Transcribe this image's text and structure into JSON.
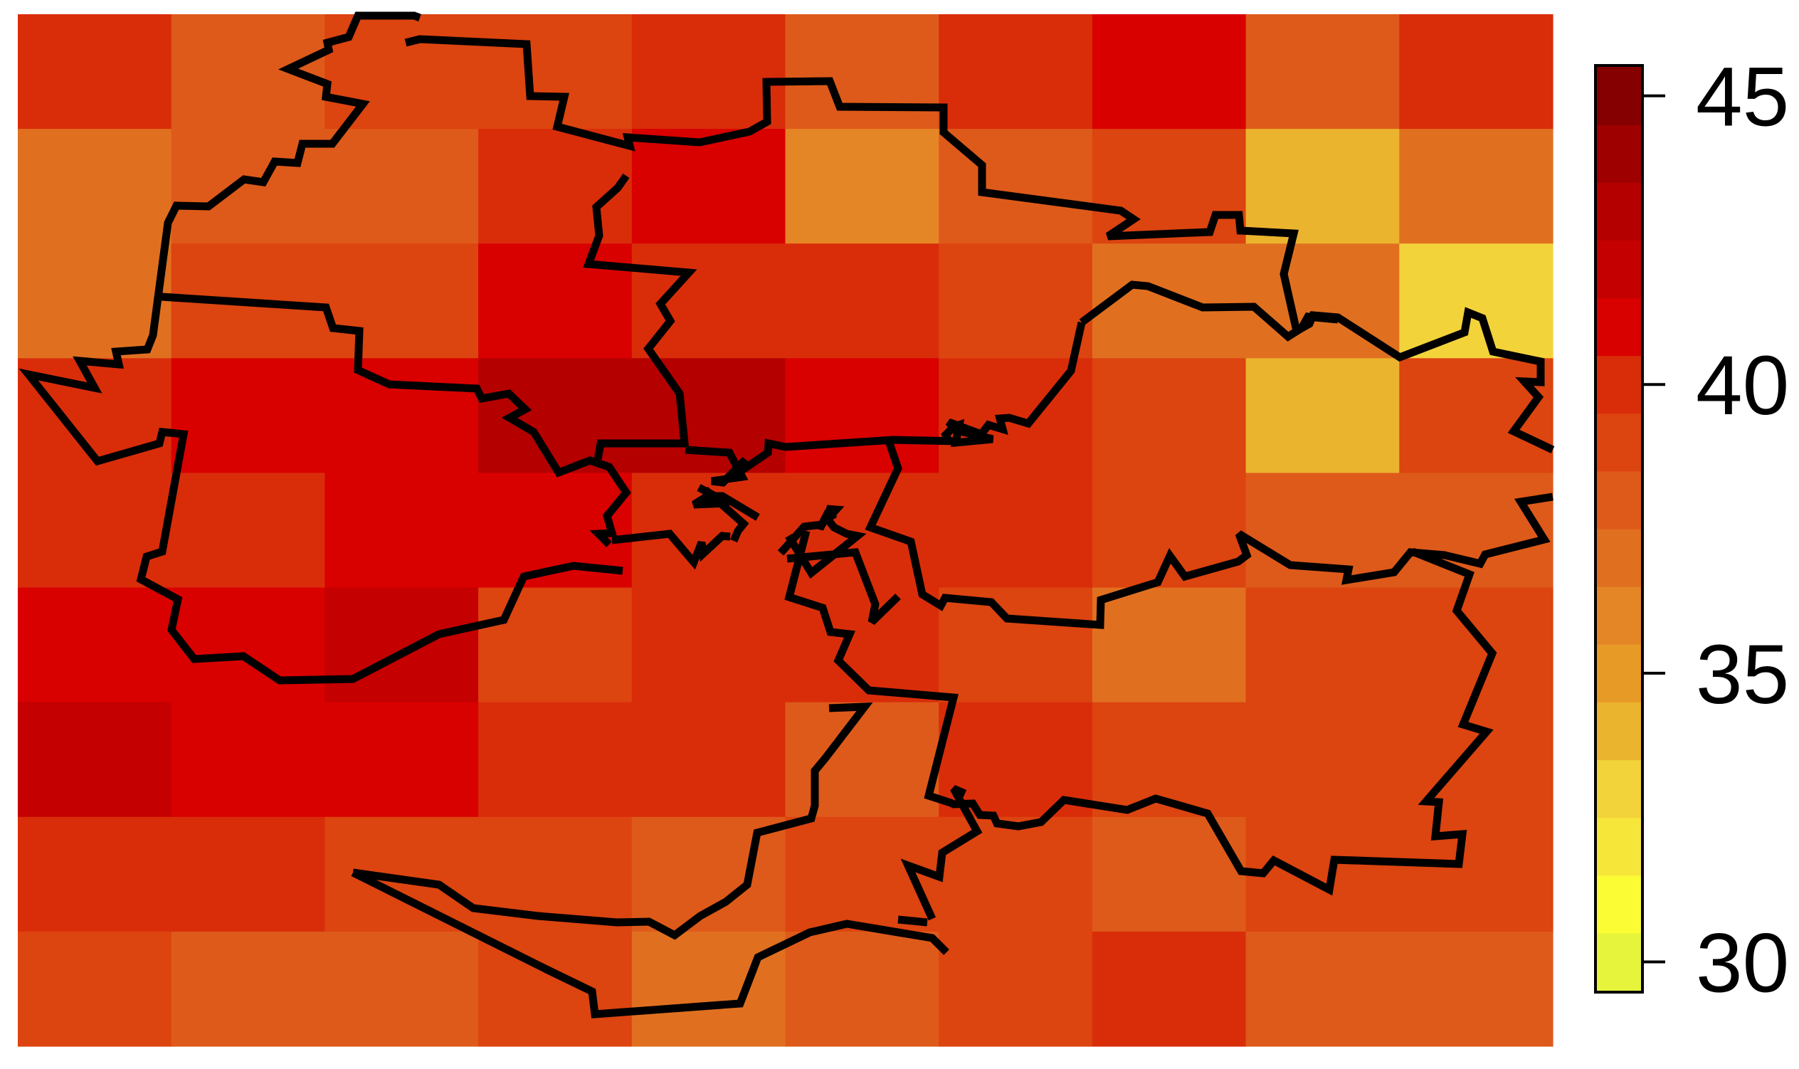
{
  "chart_data": {
    "type": "heatmap",
    "title": "",
    "colorbar": {
      "range": [
        29.5,
        45.5
      ],
      "ticks": [
        {
          "value": 45,
          "label": "45"
        },
        {
          "value": 40,
          "label": "40"
        },
        {
          "value": 35,
          "label": "35"
        },
        {
          "value": 30,
          "label": "30"
        }
      ],
      "step": 1,
      "colors": [
        "#e6f53c",
        "#fcfc34",
        "#f7e63a",
        "#f3d33a",
        "#ebb42e",
        "#e89a26",
        "#e58626",
        "#e07020",
        "#de5a1a",
        "#dc4410",
        "#d92d0a",
        "#d90000",
        "#c40000",
        "#b50000",
        "#9e0000",
        "#850000"
      ]
    },
    "grid": {
      "rows": 9,
      "cols": 10,
      "values": [
        [
          39.6,
          38.2,
          39.0,
          39.2,
          40.4,
          38.0,
          40.4,
          40.5,
          37.8,
          40.4
        ],
        [
          37.2,
          37.8,
          37.6,
          40.2,
          40.5,
          35.5,
          37.6,
          39.4,
          33.6,
          37.3
        ],
        [
          37.3,
          39.3,
          39.4,
          40.6,
          40.2,
          40.3,
          39.3,
          37.3,
          36.8,
          32.6
        ],
        [
          39.8,
          41.4,
          41.3,
          43.2,
          43.0,
          41.4,
          39.8,
          38.8,
          33.7,
          38.6
        ],
        [
          39.7,
          40.3,
          41.4,
          40.9,
          40.3,
          40.3,
          39.5,
          38.6,
          37.6,
          37.9
        ],
        [
          41.4,
          41.2,
          41.5,
          39.4,
          39.5,
          39.5,
          39.4,
          37.2,
          38.8,
          38.7
        ],
        [
          41.7,
          40.5,
          40.5,
          39.6,
          39.7,
          38.4,
          39.6,
          39.4,
          39.4,
          39.3
        ],
        [
          40.0,
          40.2,
          38.8,
          38.7,
          37.6,
          38.8,
          38.7,
          38.3,
          38.7,
          38.9
        ],
        [
          38.8,
          38.2,
          38.2,
          38.5,
          36.6,
          37.6,
          38.6,
          39.6,
          38.0,
          38.2
        ]
      ]
    },
    "borders": [
      [
        [
          590,
          25
        ],
        [
          582,
          22
        ],
        [
          503,
          22
        ],
        [
          490,
          52
        ],
        [
          460,
          60
        ],
        [
          462,
          70
        ],
        [
          405,
          97
        ],
        [
          460,
          118
        ],
        [
          458,
          136
        ],
        [
          510,
          146
        ],
        [
          467,
          202
        ],
        [
          425,
          202
        ],
        [
          418,
          229
        ],
        [
          386,
          227
        ],
        [
          370,
          256
        ],
        [
          343,
          252
        ],
        [
          293,
          290
        ],
        [
          248,
          289
        ],
        [
          236,
          313
        ],
        [
          215,
          471
        ],
        [
          207,
          491
        ],
        [
          163,
          494
        ],
        [
          167,
          512
        ],
        [
          112,
          507
        ],
        [
          133,
          545
        ],
        [
          40,
          526
        ],
        [
          137,
          648
        ],
        [
          224,
          623
        ],
        [
          228,
          607
        ],
        [
          258,
          610
        ],
        [
          228,
          775
        ],
        [
          206,
          782
        ],
        [
          198,
          814
        ],
        [
          250,
          842
        ],
        [
          241,
          885
        ],
        [
          273,
          926
        ],
        [
          342,
          922
        ],
        [
          393,
          956
        ],
        [
          496,
          954
        ],
        [
          617,
          891
        ],
        [
          708,
          871
        ],
        [
          736,
          810
        ],
        [
          806,
          795
        ],
        [
          875,
          802
        ]
      ],
      [
        [
          570,
          60
        ],
        [
          590,
          55
        ],
        [
          740,
          62
        ],
        [
          745,
          135
        ],
        [
          793,
          136
        ],
        [
          783,
          178
        ],
        [
          885,
          205
        ],
        [
          882,
          193
        ],
        [
          983,
          200
        ],
        [
          1053,
          185
        ],
        [
          1078,
          171
        ],
        [
          1077,
          115
        ],
        [
          1166,
          114
        ],
        [
          1180,
          150
        ],
        [
          1326,
          151
        ],
        [
          1326,
          186
        ],
        [
          1380,
          232
        ],
        [
          1380,
          270
        ],
        [
          1575,
          296
        ],
        [
          1593,
          308
        ],
        [
          1557,
          332
        ],
        [
          1700,
          326
        ],
        [
          1708,
          302
        ],
        [
          1741,
          302
        ],
        [
          1743,
          324
        ],
        [
          1818,
          328
        ],
        [
          1804,
          385
        ],
        [
          1822,
          465
        ],
        [
          1840,
          455
        ],
        [
          1845,
          443
        ],
        [
          1880,
          446
        ],
        [
          1967,
          502
        ],
        [
          2058,
          467
        ],
        [
          2063,
          439
        ],
        [
          2083,
          447
        ],
        [
          2098,
          494
        ],
        [
          2165,
          508
        ],
        [
          2165,
          537
        ],
        [
          2142,
          536
        ],
        [
          2162,
          558
        ],
        [
          2127,
          606
        ],
        [
          2182,
          632
        ]
      ],
      [
        [
          227,
          417
        ],
        [
          458,
          432
        ],
        [
          468,
          461
        ],
        [
          505,
          465
        ],
        [
          503,
          520
        ],
        [
          547,
          540
        ],
        [
          670,
          546
        ],
        [
          677,
          560
        ],
        [
          715,
          553
        ],
        [
          738,
          575
        ],
        [
          716,
          587
        ],
        [
          750,
          607
        ],
        [
          785,
          664
        ],
        [
          829,
          647
        ],
        [
          856,
          656
        ],
        [
          880,
          692
        ],
        [
          853,
          725
        ],
        [
          860,
          749
        ],
        [
          841,
          750
        ],
        [
          856,
          765
        ]
      ],
      [
        [
          880,
          247
        ],
        [
          868,
          264
        ],
        [
          838,
          291
        ],
        [
          842,
          331
        ],
        [
          827,
          371
        ],
        [
          968,
          383
        ],
        [
          928,
          427
        ],
        [
          942,
          451
        ],
        [
          911,
          490
        ],
        [
          955,
          553
        ],
        [
          962,
          623
        ],
        [
          844,
          623
        ],
        [
          840,
          645
        ]
      ],
      [
        [
          1520,
          453
        ],
        [
          1591,
          400
        ],
        [
          1613,
          402
        ],
        [
          1690,
          432
        ],
        [
          1762,
          431
        ],
        [
          1810,
          473
        ],
        [
          1829,
          461
        ],
        [
          1838,
          445
        ],
        [
          1880,
          449
        ]
      ],
      [
        [
          1520,
          453
        ],
        [
          1505,
          521
        ],
        [
          1445,
          595
        ],
        [
          1418,
          587
        ],
        [
          1405,
          588
        ],
        [
          1409,
          603
        ],
        [
          1389,
          597
        ],
        [
          1379,
          610
        ],
        [
          1333,
          593
        ],
        [
          1339,
          600
        ],
        [
          1348,
          597
        ],
        [
          1343,
          622
        ],
        [
          1395,
          617
        ],
        [
          1337,
          603
        ],
        [
          1329,
          611
        ],
        [
          1333,
          619
        ]
      ],
      [
        [
          963,
          632
        ],
        [
          1025,
          636
        ],
        [
          1043,
          670
        ],
        [
          1000,
          676
        ],
        [
          1016,
          678
        ],
        [
          1047,
          646
        ],
        [
          1038,
          664
        ],
        [
          1079,
          636
        ],
        [
          1080,
          623
        ],
        [
          1104,
          628
        ],
        [
          1255,
          618
        ],
        [
          1347,
          620
        ]
      ],
      [
        [
          982,
          685
        ],
        [
          1024,
          707
        ],
        [
          975,
          709
        ],
        [
          994,
          697
        ],
        [
          1015,
          697
        ],
        [
          1065,
          727
        ]
      ],
      [
        [
          991,
          688
        ],
        [
          1045,
          736
        ],
        [
          1037,
          746
        ],
        [
          1031,
          760
        ]
      ],
      [
        [
          1026,
          754
        ],
        [
          1015,
          753
        ],
        [
          988,
          778
        ],
        [
          986,
          762
        ],
        [
          975,
          790
        ],
        [
          941,
          750
        ],
        [
          860,
          759
        ]
      ],
      [
        [
          1106,
          785
        ],
        [
          1202,
          776
        ],
        [
          1230,
          849
        ],
        [
          1225,
          874
        ],
        [
          1262,
          838
        ]
      ],
      [
        [
          1097,
          777
        ],
        [
          1130,
          740
        ],
        [
          1155,
          737
        ],
        [
          1152,
          741
        ],
        [
          1152,
          743
        ],
        [
          1162,
          723
        ],
        [
          1167,
          725
        ],
        [
          1175,
          716
        ],
        [
          1162,
          715
        ],
        [
          1165,
          717
        ],
        [
          1170,
          721
        ],
        [
          1170,
          724
        ],
        [
          1162,
          728
        ],
        [
          1172,
          741
        ],
        [
          1190,
          750
        ],
        [
          1205,
          753
        ],
        [
          1140,
          805
        ],
        [
          1108,
          753
        ]
      ],
      [
        [
          1250,
          623
        ],
        [
          1262,
          658
        ],
        [
          1223,
          741
        ],
        [
          1280,
          761
        ],
        [
          1296,
          835
        ],
        [
          1322,
          851
        ],
        [
          1328,
          840
        ],
        [
          1393,
          846
        ],
        [
          1415,
          869
        ],
        [
          1546,
          878
        ],
        [
          1547,
          843
        ],
        [
          1627,
          818
        ],
        [
          1644,
          781
        ],
        [
          1665,
          810
        ],
        [
          1740,
          789
        ],
        [
          1752,
          780
        ],
        [
          1741,
          750
        ],
        [
          1813,
          794
        ],
        [
          1895,
          800
        ],
        [
          1892,
          815
        ],
        [
          1959,
          804
        ],
        [
          1982,
          776
        ],
        [
          2030,
          780
        ],
        [
          2080,
          792
        ],
        [
          2087,
          779
        ],
        [
          2170,
          758
        ],
        [
          2137,
          705
        ],
        [
          2182,
          698
        ]
      ],
      [
        [
          1985,
          775
        ],
        [
          2065,
          807
        ],
        [
          2047,
          858
        ],
        [
          2097,
          918
        ],
        [
          2056,
          1018
        ],
        [
          2089,
          1028
        ],
        [
          2004,
          1126
        ],
        [
          2022,
          1127
        ],
        [
          2017,
          1175
        ],
        [
          2055,
          1172
        ],
        [
          2050,
          1214
        ],
        [
          1875,
          1208
        ],
        [
          1868,
          1250
        ],
        [
          1790,
          1209
        ],
        [
          1775,
          1227
        ],
        [
          1744,
          1224
        ],
        [
          1697,
          1143
        ],
        [
          1624,
          1122
        ],
        [
          1584,
          1138
        ],
        [
          1495,
          1124
        ],
        [
          1463,
          1155
        ],
        [
          1431,
          1161
        ],
        [
          1401,
          1157
        ],
        [
          1396,
          1146
        ],
        [
          1377,
          1145
        ],
        [
          1367,
          1129
        ],
        [
          1340,
          1130
        ],
        [
          1336,
          1128
        ],
        [
          1305,
          1118
        ],
        [
          1340,
          980
        ],
        [
          1221,
          970
        ],
        [
          1178,
          928
        ],
        [
          1194,
          891
        ],
        [
          1167,
          888
        ],
        [
          1156,
          854
        ],
        [
          1109,
          839
        ],
        [
          1133,
          746
        ]
      ],
      [
        [
          1165,
          995
        ],
        [
          1215,
          993
        ],
        [
          1160,
          1065
        ],
        [
          1145,
          1083
        ],
        [
          1145,
          1132
        ],
        [
          1140,
          1150
        ],
        [
          1064,
          1170
        ],
        [
          1050,
          1243
        ],
        [
          1020,
          1267
        ],
        [
          984,
          1287
        ],
        [
          968,
          1299
        ],
        [
          948,
          1314
        ],
        [
          912,
          1295
        ],
        [
          867,
          1296
        ],
        [
          756,
          1287
        ],
        [
          665,
          1276
        ],
        [
          617,
          1243
        ],
        [
          496,
          1226
        ]
      ],
      [
        [
          1356,
          1115
        ],
        [
          1340,
          1108
        ],
        [
          1373,
          1168
        ],
        [
          1324,
          1198
        ],
        [
          1320,
          1232
        ],
        [
          1276,
          1216
        ],
        [
          1310,
          1291
        ]
      ],
      [
        [
          1303,
          1296
        ],
        [
          1262,
          1292
        ]
      ],
      [
        [
          1330,
          1338
        ],
        [
          1310,
          1318
        ],
        [
          1190,
          1298
        ],
        [
          1138,
          1310
        ],
        [
          1065,
          1345
        ],
        [
          1040,
          1410
        ],
        [
          836,
          1425
        ],
        [
          832,
          1393
        ],
        [
          768,
          1362
        ],
        [
          496,
          1226
        ]
      ]
    ]
  }
}
